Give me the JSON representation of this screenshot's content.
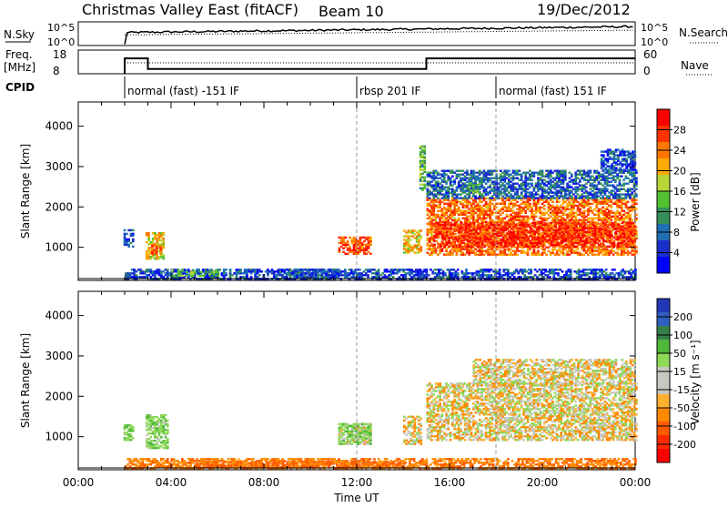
{
  "header": {
    "station": "Christmas Valley East (fitACF)",
    "beam": "Beam 10",
    "date": "19/Dec/2012"
  },
  "strips": {
    "nsky_label": "N.Sky",
    "nsky_ticks": [
      "10^5",
      "10^0"
    ],
    "nsearch_label": "N.Search",
    "nsearch_ticks": [
      "10^5",
      "10^0"
    ],
    "freq_label": "Freq.",
    "freq_unit": "[MHz]",
    "freq_ticks": [
      "18",
      "8"
    ],
    "nave_label": "Nave",
    "nave_ticks": [
      "60",
      "0"
    ],
    "cpid_label": "CPID",
    "cpid_modes": [
      {
        "label": "normal (fast) -151 IF",
        "start": 2.0
      },
      {
        "label": "rbsp 201 IF",
        "start": 12.0
      },
      {
        "label": "normal (fast) 151 IF",
        "start": 18.0
      }
    ],
    "freq_steps": [
      {
        "t0": 2.0,
        "t1": 3.0,
        "freq": 14.5
      },
      {
        "t0": 3.0,
        "t1": 15.0,
        "freq": 10.0
      },
      {
        "t0": 15.0,
        "t1": 24.0,
        "freq": 14.5
      }
    ]
  },
  "chart_data": [
    {
      "type": "heatmap",
      "name": "power",
      "ylabel": "Slant Range [km]",
      "xlabel": "Time UT",
      "xlim": [
        0,
        24
      ],
      "ylim": [
        180,
        4600
      ],
      "x_ticks": [
        "00:00",
        "04:00",
        "08:00",
        "12:00",
        "16:00",
        "20:00",
        "00:00"
      ],
      "y_ticks": [
        1000,
        2000,
        3000,
        4000
      ],
      "colorbar": {
        "label": "Power [dB]",
        "ticks": [
          "28",
          "24",
          "20",
          "16",
          "12",
          "8",
          "4"
        ],
        "colors": [
          "#ff0000",
          "#ff3300",
          "#ff7700",
          "#ffaa00",
          "#b8d638",
          "#52c232",
          "#358f5a",
          "#1f6fb4",
          "#1a2fcc",
          "#0000ff"
        ]
      },
      "patches": [
        {
          "t0": 1.95,
          "t1": 2.35,
          "r0": 1000,
          "r1": 1450,
          "value": 6
        },
        {
          "t0": 2.9,
          "t1": 3.7,
          "r0": 700,
          "r1": 1350,
          "value": 20
        },
        {
          "t0": 3.05,
          "t1": 3.55,
          "r0": 830,
          "r1": 1050,
          "value": 26
        },
        {
          "t0": 9.0,
          "t1": 11.3,
          "r0": 250,
          "r1": 450,
          "value": 8
        },
        {
          "t0": 11.2,
          "t1": 12.6,
          "r0": 820,
          "r1": 1250,
          "value": 26
        },
        {
          "t0": 14.0,
          "t1": 14.8,
          "r0": 850,
          "r1": 1400,
          "value": 20
        },
        {
          "t0": 15.0,
          "t1": 24.0,
          "r0": 800,
          "r1": 2200,
          "value": 24
        },
        {
          "t0": 15.3,
          "t1": 24.0,
          "r0": 1000,
          "r1": 1600,
          "value": 28
        },
        {
          "t0": 15.0,
          "t1": 24.0,
          "r0": 2200,
          "r1": 2900,
          "value": 8
        },
        {
          "t0": 22.5,
          "t1": 24.0,
          "r0": 2900,
          "r1": 3400,
          "value": 6
        },
        {
          "t0": 2.0,
          "t1": 24.0,
          "r0": 200,
          "r1": 450,
          "value": 6
        },
        {
          "t0": 4.0,
          "t1": 6.0,
          "r0": 280,
          "r1": 420,
          "value": 14
        },
        {
          "t0": 14.7,
          "t1": 14.95,
          "r0": 2400,
          "r1": 3500,
          "value": 14
        },
        {
          "t0": 16.8,
          "t1": 17.3,
          "r0": 2300,
          "r1": 2700,
          "value": 12
        }
      ]
    },
    {
      "type": "heatmap",
      "name": "velocity",
      "ylabel": "Slant Range [km]",
      "xlabel": "Time UT",
      "xlim": [
        0,
        24
      ],
      "ylim": [
        180,
        4600
      ],
      "x_ticks": [
        "00:00",
        "04:00",
        "08:00",
        "12:00",
        "16:00",
        "20:00",
        "00:00"
      ],
      "y_ticks": [
        1000,
        2000,
        3000,
        4000
      ],
      "colorbar": {
        "label": "Velocity [m s⁻¹]",
        "ticks": [
          "200",
          "100",
          "50",
          "15",
          "-15",
          "-50",
          "-100",
          "-200"
        ],
        "colors": [
          "#2238b5",
          "#2f5fc0",
          "#37804a",
          "#4fb83a",
          "#8ed85a",
          "#c8c8c0",
          "#c8c8c0",
          "#ffb030",
          "#ff8a00",
          "#ff5a00",
          "#ff2a00",
          "#ff0000"
        ]
      },
      "patches": [
        {
          "t0": 1.95,
          "t1": 2.35,
          "r0": 900,
          "r1": 1300,
          "value": 40
        },
        {
          "t0": 2.9,
          "t1": 3.8,
          "r0": 700,
          "r1": 1550,
          "value": 40
        },
        {
          "t0": 11.2,
          "t1": 12.6,
          "r0": 800,
          "r1": 1300,
          "value": 0
        },
        {
          "t0": 11.2,
          "t1": 12.6,
          "r0": 800,
          "r1": 1300,
          "value": 35
        },
        {
          "t0": 14.0,
          "t1": 14.8,
          "r0": 800,
          "r1": 1500,
          "value": 0
        },
        {
          "t0": 15.0,
          "t1": 24.0,
          "r0": 900,
          "r1": 2300,
          "value": 0
        },
        {
          "t0": 17.0,
          "t1": 24.0,
          "r0": 2300,
          "r1": 2900,
          "value": 0
        },
        {
          "t0": 2.0,
          "t1": 24.0,
          "r0": 200,
          "r1": 450,
          "value": -40
        },
        {
          "t0": 5.0,
          "t1": 14.0,
          "r0": 220,
          "r1": 380,
          "value": -60
        }
      ]
    }
  ]
}
